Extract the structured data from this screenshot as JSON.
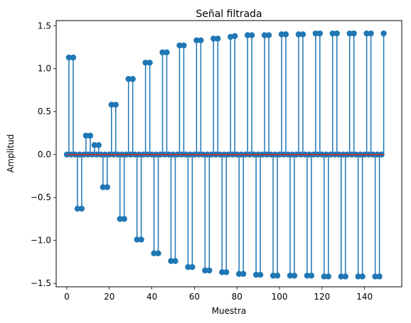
{
  "chart_data": {
    "type": "stem",
    "title": "Señal filtrada",
    "xlabel": "Muestra",
    "ylabel": "Amplitud",
    "xlim": [
      -5,
      157.5
    ],
    "ylim": [
      -1.54,
      1.56
    ],
    "xticks": [
      "0",
      "20",
      "40",
      "60",
      "80",
      "100",
      "120",
      "140"
    ],
    "xtick_values": [
      0,
      20,
      40,
      60,
      80,
      100,
      120,
      140
    ],
    "yticks": [
      "−1.5",
      "−1.0",
      "−0.5",
      "0.0",
      "0.5",
      "1.0",
      "1.5"
    ],
    "ytick_values": [
      -1.5,
      -1.0,
      -0.5,
      0.0,
      0.5,
      1.0,
      1.5
    ],
    "grid": false,
    "colors": {
      "stem": "#1f77b4",
      "baseline": "#d62728"
    },
    "nonzero_points": [
      [
        1,
        1.13
      ],
      [
        3,
        1.13
      ],
      [
        5,
        -0.63
      ],
      [
        7,
        -0.63
      ],
      [
        9,
        0.22
      ],
      [
        11,
        0.22
      ],
      [
        13,
        0.11
      ],
      [
        15,
        0.11
      ],
      [
        17,
        -0.38
      ],
      [
        19,
        -0.38
      ],
      [
        21,
        0.58
      ],
      [
        23,
        0.58
      ],
      [
        25,
        -0.75
      ],
      [
        27,
        -0.75
      ],
      [
        29,
        0.88
      ],
      [
        31,
        0.88
      ],
      [
        33,
        -0.99
      ],
      [
        35,
        -0.99
      ],
      [
        37,
        1.07
      ],
      [
        39,
        1.07
      ],
      [
        41,
        -1.15
      ],
      [
        43,
        -1.15
      ],
      [
        45,
        1.19
      ],
      [
        47,
        1.19
      ],
      [
        49,
        -1.24
      ],
      [
        51,
        -1.24
      ],
      [
        53,
        1.27
      ],
      [
        55,
        1.27
      ],
      [
        57,
        -1.31
      ],
      [
        59,
        -1.31
      ],
      [
        61,
        1.33
      ],
      [
        63,
        1.33
      ],
      [
        65,
        -1.35
      ],
      [
        67,
        -1.35
      ],
      [
        69,
        1.35
      ],
      [
        71,
        1.35
      ],
      [
        73,
        -1.37
      ],
      [
        75,
        -1.37
      ],
      [
        77,
        1.37
      ],
      [
        79,
        1.38
      ],
      [
        81,
        -1.39
      ],
      [
        83,
        -1.39
      ],
      [
        85,
        1.39
      ],
      [
        87,
        1.39
      ],
      [
        89,
        -1.4
      ],
      [
        91,
        -1.4
      ],
      [
        93,
        1.39
      ],
      [
        95,
        1.39
      ],
      [
        97,
        -1.41
      ],
      [
        99,
        -1.41
      ],
      [
        101,
        1.4
      ],
      [
        103,
        1.4
      ],
      [
        105,
        -1.41
      ],
      [
        107,
        -1.41
      ],
      [
        109,
        1.4
      ],
      [
        111,
        1.4
      ],
      [
        113,
        -1.41
      ],
      [
        115,
        -1.41
      ],
      [
        117,
        1.41
      ],
      [
        119,
        1.41
      ],
      [
        121,
        -1.42
      ],
      [
        123,
        -1.42
      ],
      [
        125,
        1.41
      ],
      [
        127,
        1.41
      ],
      [
        129,
        -1.42
      ],
      [
        131,
        -1.42
      ],
      [
        133,
        1.41
      ],
      [
        135,
        1.41
      ],
      [
        137,
        -1.42
      ],
      [
        139,
        -1.42
      ],
      [
        141,
        1.41
      ],
      [
        143,
        1.41
      ],
      [
        145,
        -1.42
      ],
      [
        147,
        -1.42
      ],
      [
        149,
        1.41
      ]
    ],
    "x_range_samples": [
      0,
      149
    ]
  }
}
